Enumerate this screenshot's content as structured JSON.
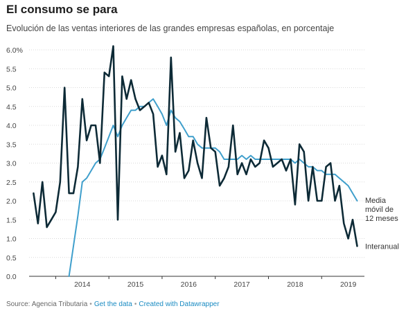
{
  "header": {
    "title": "El consumo se para",
    "subtitle": "Evolución de las ventas interiores de las grandes empresas españolas, en porcentaje"
  },
  "footer": {
    "source": "Source: Agencia Tributaria",
    "get_data": "Get the data",
    "created_with": "Created with Datawrapper"
  },
  "colors": {
    "interanual": "#0d2a36",
    "media": "#3f9fcc",
    "grid": "#d8d8d8"
  },
  "chart_data": {
    "type": "line",
    "title": "El consumo se para",
    "ylim": [
      0,
      6.0
    ],
    "xlim": [
      2013.5,
      2019.7
    ],
    "y_ticks": [
      {
        "v": 0,
        "label": "0.0"
      },
      {
        "v": 0.5,
        "label": "0.5"
      },
      {
        "v": 1.0,
        "label": "1.0"
      },
      {
        "v": 1.5,
        "label": "1.5"
      },
      {
        "v": 2.0,
        "label": "2.0"
      },
      {
        "v": 2.5,
        "label": "2.5"
      },
      {
        "v": 3.0,
        "label": "3.0"
      },
      {
        "v": 3.5,
        "label": "3.5"
      },
      {
        "v": 4.0,
        "label": "4.0"
      },
      {
        "v": 4.5,
        "label": "4.5"
      },
      {
        "v": 5.0,
        "label": "5.0"
      },
      {
        "v": 5.5,
        "label": "5.5"
      },
      {
        "v": 6.0,
        "label": "6.0%"
      }
    ],
    "x_ticks": [
      {
        "v": 2014,
        "label": "2014"
      },
      {
        "v": 2015,
        "label": "2015"
      },
      {
        "v": 2016,
        "label": "2016"
      },
      {
        "v": 2017,
        "label": "2017"
      },
      {
        "v": 2018,
        "label": "2018"
      },
      {
        "v": 2019,
        "label": "2019"
      }
    ],
    "grid": true,
    "series": [
      {
        "name": "Interanual",
        "label": "Interanual",
        "color_key": "interanual",
        "points": [
          [
            2013.583,
            2.2
          ],
          [
            2013.667,
            1.4
          ],
          [
            2013.75,
            2.5
          ],
          [
            2013.833,
            1.3
          ],
          [
            2013.917,
            1.5
          ],
          [
            2014.0,
            1.7
          ],
          [
            2014.083,
            2.5
          ],
          [
            2014.167,
            5.0
          ],
          [
            2014.25,
            2.2
          ],
          [
            2014.333,
            2.2
          ],
          [
            2014.417,
            2.9
          ],
          [
            2014.5,
            4.7
          ],
          [
            2014.583,
            3.6
          ],
          [
            2014.667,
            4.0
          ],
          [
            2014.75,
            4.0
          ],
          [
            2014.833,
            3.0
          ],
          [
            2014.917,
            5.4
          ],
          [
            2015.0,
            5.3
          ],
          [
            2015.083,
            6.1
          ],
          [
            2015.167,
            1.5
          ],
          [
            2015.25,
            5.3
          ],
          [
            2015.333,
            4.7
          ],
          [
            2015.417,
            5.2
          ],
          [
            2015.5,
            4.7
          ],
          [
            2015.583,
            4.4
          ],
          [
            2015.667,
            4.5
          ],
          [
            2015.75,
            4.6
          ],
          [
            2015.833,
            4.3
          ],
          [
            2015.917,
            2.9
          ],
          [
            2016.0,
            3.2
          ],
          [
            2016.083,
            2.7
          ],
          [
            2016.167,
            5.8
          ],
          [
            2016.25,
            3.3
          ],
          [
            2016.333,
            3.8
          ],
          [
            2016.417,
            2.6
          ],
          [
            2016.5,
            2.8
          ],
          [
            2016.583,
            3.6
          ],
          [
            2016.667,
            3.0
          ],
          [
            2016.75,
            2.6
          ],
          [
            2016.833,
            4.2
          ],
          [
            2016.917,
            3.4
          ],
          [
            2017.0,
            3.3
          ],
          [
            2017.083,
            2.4
          ],
          [
            2017.167,
            2.6
          ],
          [
            2017.25,
            2.9
          ],
          [
            2017.333,
            4.0
          ],
          [
            2017.417,
            2.7
          ],
          [
            2017.5,
            3.0
          ],
          [
            2017.583,
            2.7
          ],
          [
            2017.667,
            3.1
          ],
          [
            2017.75,
            2.9
          ],
          [
            2017.833,
            3.0
          ],
          [
            2017.917,
            3.6
          ],
          [
            2018.0,
            3.4
          ],
          [
            2018.083,
            2.9
          ],
          [
            2018.167,
            3.0
          ],
          [
            2018.25,
            3.1
          ],
          [
            2018.333,
            2.8
          ],
          [
            2018.417,
            3.1
          ],
          [
            2018.5,
            1.9
          ],
          [
            2018.583,
            3.5
          ],
          [
            2018.667,
            3.3
          ],
          [
            2018.75,
            2.0
          ],
          [
            2018.833,
            2.9
          ],
          [
            2018.917,
            2.0
          ],
          [
            2019.0,
            2.0
          ],
          [
            2019.083,
            2.9
          ],
          [
            2019.167,
            3.0
          ],
          [
            2019.25,
            2.0
          ],
          [
            2019.333,
            2.4
          ],
          [
            2019.417,
            1.4
          ],
          [
            2019.5,
            1.0
          ],
          [
            2019.583,
            1.5
          ],
          [
            2019.667,
            0.8
          ]
        ]
      },
      {
        "name": "Media móvil de 12 meses",
        "label_lines": [
          "Media",
          "móvil de",
          "12 meses"
        ],
        "color_key": "media",
        "points": [
          [
            2014.25,
            0.0
          ],
          [
            2014.333,
            0.8
          ],
          [
            2014.417,
            1.6
          ],
          [
            2014.5,
            2.5
          ],
          [
            2014.583,
            2.6
          ],
          [
            2014.667,
            2.8
          ],
          [
            2014.75,
            3.0
          ],
          [
            2014.833,
            3.1
          ],
          [
            2014.917,
            3.4
          ],
          [
            2015.0,
            3.7
          ],
          [
            2015.083,
            4.0
          ],
          [
            2015.167,
            3.7
          ],
          [
            2015.25,
            4.0
          ],
          [
            2015.333,
            4.2
          ],
          [
            2015.417,
            4.4
          ],
          [
            2015.5,
            4.4
          ],
          [
            2015.583,
            4.5
          ],
          [
            2015.667,
            4.5
          ],
          [
            2015.75,
            4.6
          ],
          [
            2015.833,
            4.7
          ],
          [
            2015.917,
            4.5
          ],
          [
            2016.0,
            4.3
          ],
          [
            2016.083,
            4.0
          ],
          [
            2016.167,
            4.4
          ],
          [
            2016.25,
            4.2
          ],
          [
            2016.333,
            4.1
          ],
          [
            2016.417,
            3.9
          ],
          [
            2016.5,
            3.7
          ],
          [
            2016.583,
            3.7
          ],
          [
            2016.667,
            3.5
          ],
          [
            2016.75,
            3.4
          ],
          [
            2016.833,
            3.4
          ],
          [
            2016.917,
            3.4
          ],
          [
            2017.0,
            3.4
          ],
          [
            2017.083,
            3.3
          ],
          [
            2017.167,
            3.1
          ],
          [
            2017.25,
            3.1
          ],
          [
            2017.333,
            3.1
          ],
          [
            2017.417,
            3.1
          ],
          [
            2017.5,
            3.2
          ],
          [
            2017.583,
            3.1
          ],
          [
            2017.667,
            3.2
          ],
          [
            2017.75,
            3.1
          ],
          [
            2017.833,
            3.1
          ],
          [
            2017.917,
            3.1
          ],
          [
            2018.0,
            3.1
          ],
          [
            2018.083,
            3.1
          ],
          [
            2018.167,
            3.1
          ],
          [
            2018.25,
            3.1
          ],
          [
            2018.333,
            3.1
          ],
          [
            2018.417,
            3.1
          ],
          [
            2018.5,
            3.0
          ],
          [
            2018.583,
            3.1
          ],
          [
            2018.667,
            3.0
          ],
          [
            2018.75,
            2.9
          ],
          [
            2018.833,
            2.9
          ],
          [
            2018.917,
            2.8
          ],
          [
            2019.0,
            2.8
          ],
          [
            2019.083,
            2.7
          ],
          [
            2019.167,
            2.7
          ],
          [
            2019.25,
            2.7
          ],
          [
            2019.333,
            2.6
          ],
          [
            2019.417,
            2.5
          ],
          [
            2019.5,
            2.4
          ],
          [
            2019.583,
            2.2
          ],
          [
            2019.667,
            2.0
          ]
        ]
      }
    ]
  }
}
